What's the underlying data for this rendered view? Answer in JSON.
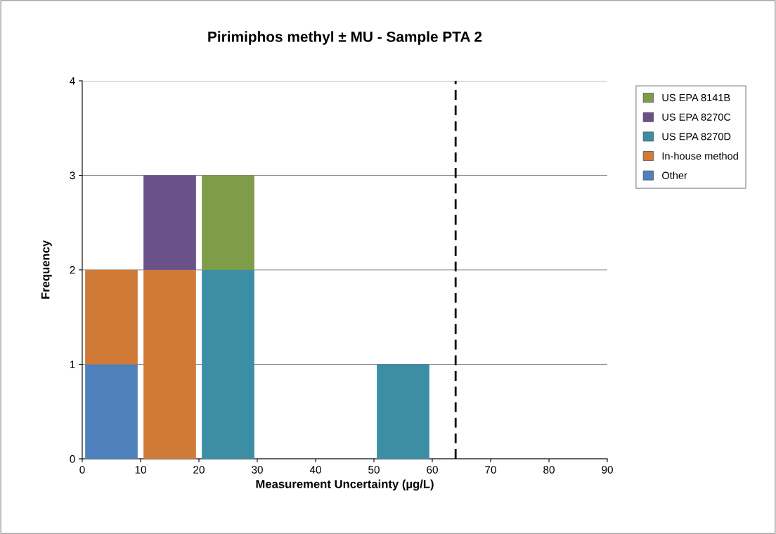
{
  "chart_data": {
    "type": "bar",
    "title": "Pirimiphos methyl ± MU - Sample PTA 2",
    "xlabel": "Measurement Uncertainty (µg/L)",
    "ylabel": "Frequency",
    "x": [
      5,
      15,
      25,
      35,
      45,
      55,
      65,
      75,
      85
    ],
    "stacked": true,
    "series": [
      {
        "name": "Other",
        "color": "#4f81bd",
        "values": [
          1,
          0,
          0,
          0,
          0,
          0,
          0,
          0,
          0
        ]
      },
      {
        "name": "In-house method",
        "color": "#d07a38",
        "values": [
          1,
          2,
          0,
          0,
          0,
          0,
          0,
          0,
          0
        ]
      },
      {
        "name": "US EPA 8270D",
        "color": "#3c8ea5",
        "values": [
          0,
          0,
          2,
          0,
          0,
          1,
          0,
          0,
          0
        ]
      },
      {
        "name": "US EPA 8270C",
        "color": "#6a5189",
        "values": [
          0,
          1,
          0,
          0,
          0,
          0,
          0,
          0,
          0
        ]
      },
      {
        "name": "US EPA 8141B",
        "color": "#7f9c48",
        "values": [
          0,
          0,
          1,
          0,
          0,
          0,
          0,
          0,
          0
        ]
      }
    ],
    "xlim": [
      0,
      90
    ],
    "xticks": [
      0,
      10,
      20,
      30,
      40,
      50,
      60,
      70,
      80,
      90
    ],
    "ylim": [
      0,
      4
    ],
    "yticks": [
      0,
      1,
      2,
      3,
      4
    ],
    "grid": "y",
    "legend": "top right",
    "ref_lines": [
      {
        "axis": "x",
        "value": 64,
        "color": "#000000",
        "line_style": "dashed"
      }
    ]
  }
}
